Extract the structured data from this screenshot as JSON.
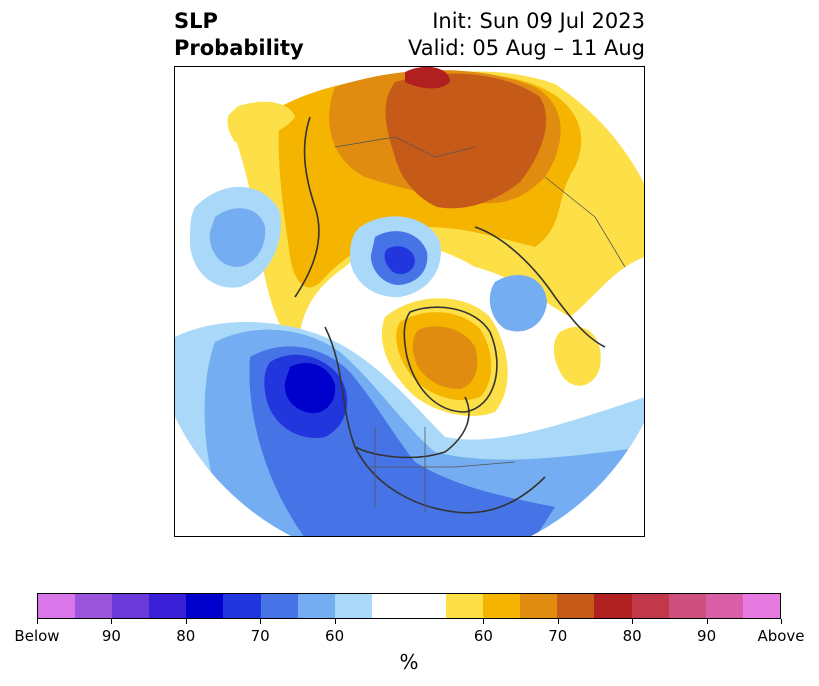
{
  "title": {
    "line1": "SLP",
    "line2": "Probability",
    "init": "Init: Sun 09 Jul 2023",
    "valid": "Valid: 05 Aug – 11 Aug"
  },
  "map": {
    "projection": "north-polar-stereographic",
    "regions": [
      {
        "name": "eurasia-arctic-above",
        "category": "above-normal",
        "level": "60-80",
        "color": "#c65a18"
      },
      {
        "name": "greenland-above",
        "category": "above-normal",
        "level": "60-70",
        "color": "#e08c10"
      },
      {
        "name": "north-pacific-below",
        "category": "below-normal",
        "level": "60-80",
        "color": "#0000d0"
      },
      {
        "name": "north-america-below",
        "category": "below-normal",
        "level": "60-70",
        "color": "#3366e0"
      },
      {
        "name": "arctic-below",
        "category": "below-normal",
        "level": "60-80",
        "color": "#2233dd"
      },
      {
        "name": "far-east-siberia-below",
        "category": "below-normal",
        "level": "60",
        "color": "#74aaf0"
      },
      {
        "name": "barents-above-peak",
        "category": "above-normal",
        "level": "80",
        "color": "#b02020"
      }
    ]
  },
  "colorbar": {
    "unit": "%",
    "ticks": [
      "Below",
      "90",
      "80",
      "70",
      "60",
      "60",
      "70",
      "80",
      "90",
      "Above"
    ],
    "colors": [
      "#d977ea",
      "#9b55dd",
      "#6a3ad8",
      "#3a1fd6",
      "#0000cc",
      "#2236dd",
      "#4673e6",
      "#74adf1",
      "#a9d8f8",
      "#ffffff",
      "#ffffff",
      "#fde047",
      "#f4b400",
      "#e08c10",
      "#c65a18",
      "#b02020",
      "#c0384a",
      "#cc4f7e",
      "#d95ea8",
      "#e77ae0"
    ]
  }
}
